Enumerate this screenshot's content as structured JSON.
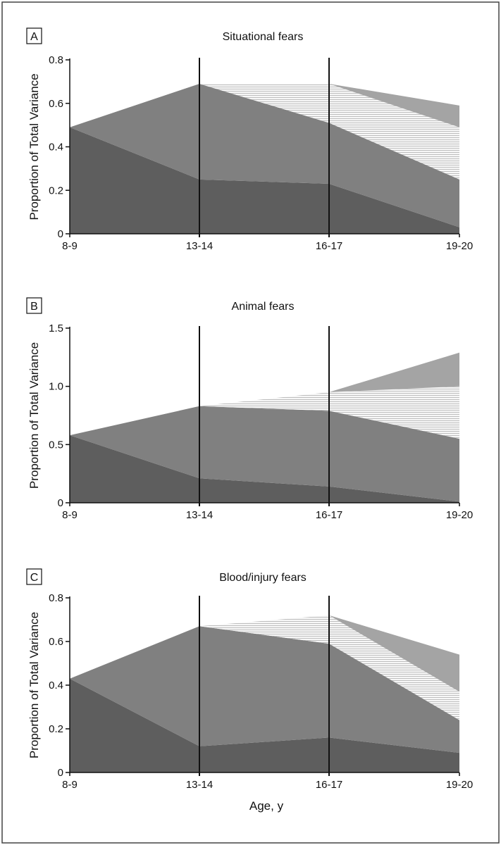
{
  "figure": {
    "xlabel": "Age, y"
  },
  "colors": {
    "border": "#444444",
    "layer_dark": "#5e5e5e",
    "layer_mid": "#808080",
    "layer_hatch_bg": "#f7f7f7",
    "layer_hatch_line": "#b8b8b8",
    "layer_light": "#a4a4a4",
    "axis": "#111111"
  },
  "chart_data": [
    {
      "type": "area",
      "panel": "A",
      "title": "Situational fears",
      "ylabel": "Proportion of Total Variance",
      "categories": [
        "8-9",
        "13-14",
        "16-17",
        "19-20"
      ],
      "yticks": [
        "0",
        "0.2",
        "0.4",
        "0.6",
        "0.8"
      ],
      "ylim": [
        0,
        0.8
      ],
      "vertical_lines_at": [
        "13-14",
        "16-17"
      ],
      "layers": [
        {
          "x": [
            "8-9",
            "13-14",
            "16-17",
            "19-20"
          ],
          "lower": [
            0,
            0,
            0,
            0
          ],
          "upper": [
            0.49,
            0.25,
            0.23,
            0.03
          ]
        },
        {
          "x": [
            "8-9",
            "13-14",
            "16-17",
            "19-20"
          ],
          "lower": [
            0.49,
            0.25,
            0.23,
            0.03
          ],
          "upper": [
            0.49,
            0.69,
            0.51,
            0.25
          ]
        },
        {
          "x": [
            "13-14",
            "16-17",
            "19-20"
          ],
          "lower": [
            0.69,
            0.51,
            0.25
          ],
          "upper": [
            0.69,
            0.69,
            0.49
          ]
        },
        {
          "x": [
            "16-17",
            "19-20"
          ],
          "lower": [
            0.69,
            0.49
          ],
          "upper": [
            0.69,
            0.59
          ]
        }
      ]
    },
    {
      "type": "area",
      "panel": "B",
      "title": "Animal fears",
      "ylabel": "Proportion of Total Variance",
      "categories": [
        "8-9",
        "13-14",
        "16-17",
        "19-20"
      ],
      "yticks": [
        "0",
        "0.5",
        "1.0",
        "1.5"
      ],
      "ylim": [
        0,
        1.5
      ],
      "vertical_lines_at": [
        "13-14",
        "16-17"
      ],
      "layers": [
        {
          "x": [
            "8-9",
            "13-14",
            "16-17",
            "19-20"
          ],
          "lower": [
            0,
            0,
            0,
            0
          ],
          "upper": [
            0.58,
            0.21,
            0.14,
            0.01
          ]
        },
        {
          "x": [
            "8-9",
            "13-14",
            "16-17",
            "19-20"
          ],
          "lower": [
            0.58,
            0.21,
            0.14,
            0.01
          ],
          "upper": [
            0.58,
            0.83,
            0.79,
            0.55
          ]
        },
        {
          "x": [
            "13-14",
            "16-17",
            "19-20"
          ],
          "lower": [
            0.83,
            0.79,
            0.55
          ],
          "upper": [
            0.83,
            0.95,
            1.0
          ]
        },
        {
          "x": [
            "16-17",
            "19-20"
          ],
          "lower": [
            0.95,
            1.0
          ],
          "upper": [
            0.95,
            1.29
          ]
        }
      ]
    },
    {
      "type": "area",
      "panel": "C",
      "title": "Blood/injury fears",
      "ylabel": "Proportion of Total Variance",
      "categories": [
        "8-9",
        "13-14",
        "16-17",
        "19-20"
      ],
      "yticks": [
        "0",
        "0.2",
        "0.4",
        "0.6",
        "0.8"
      ],
      "ylim": [
        0,
        0.8
      ],
      "vertical_lines_at": [
        "13-14",
        "16-17"
      ],
      "layers": [
        {
          "x": [
            "8-9",
            "13-14",
            "16-17",
            "19-20"
          ],
          "lower": [
            0,
            0,
            0,
            0
          ],
          "upper": [
            0.43,
            0.12,
            0.16,
            0.09
          ]
        },
        {
          "x": [
            "8-9",
            "13-14",
            "16-17",
            "19-20"
          ],
          "lower": [
            0.43,
            0.12,
            0.16,
            0.09
          ],
          "upper": [
            0.43,
            0.67,
            0.59,
            0.24
          ]
        },
        {
          "x": [
            "13-14",
            "16-17",
            "19-20"
          ],
          "lower": [
            0.67,
            0.59,
            0.24
          ],
          "upper": [
            0.67,
            0.72,
            0.37
          ]
        },
        {
          "x": [
            "16-17",
            "19-20"
          ],
          "lower": [
            0.72,
            0.37
          ],
          "upper": [
            0.72,
            0.54
          ]
        }
      ]
    }
  ]
}
